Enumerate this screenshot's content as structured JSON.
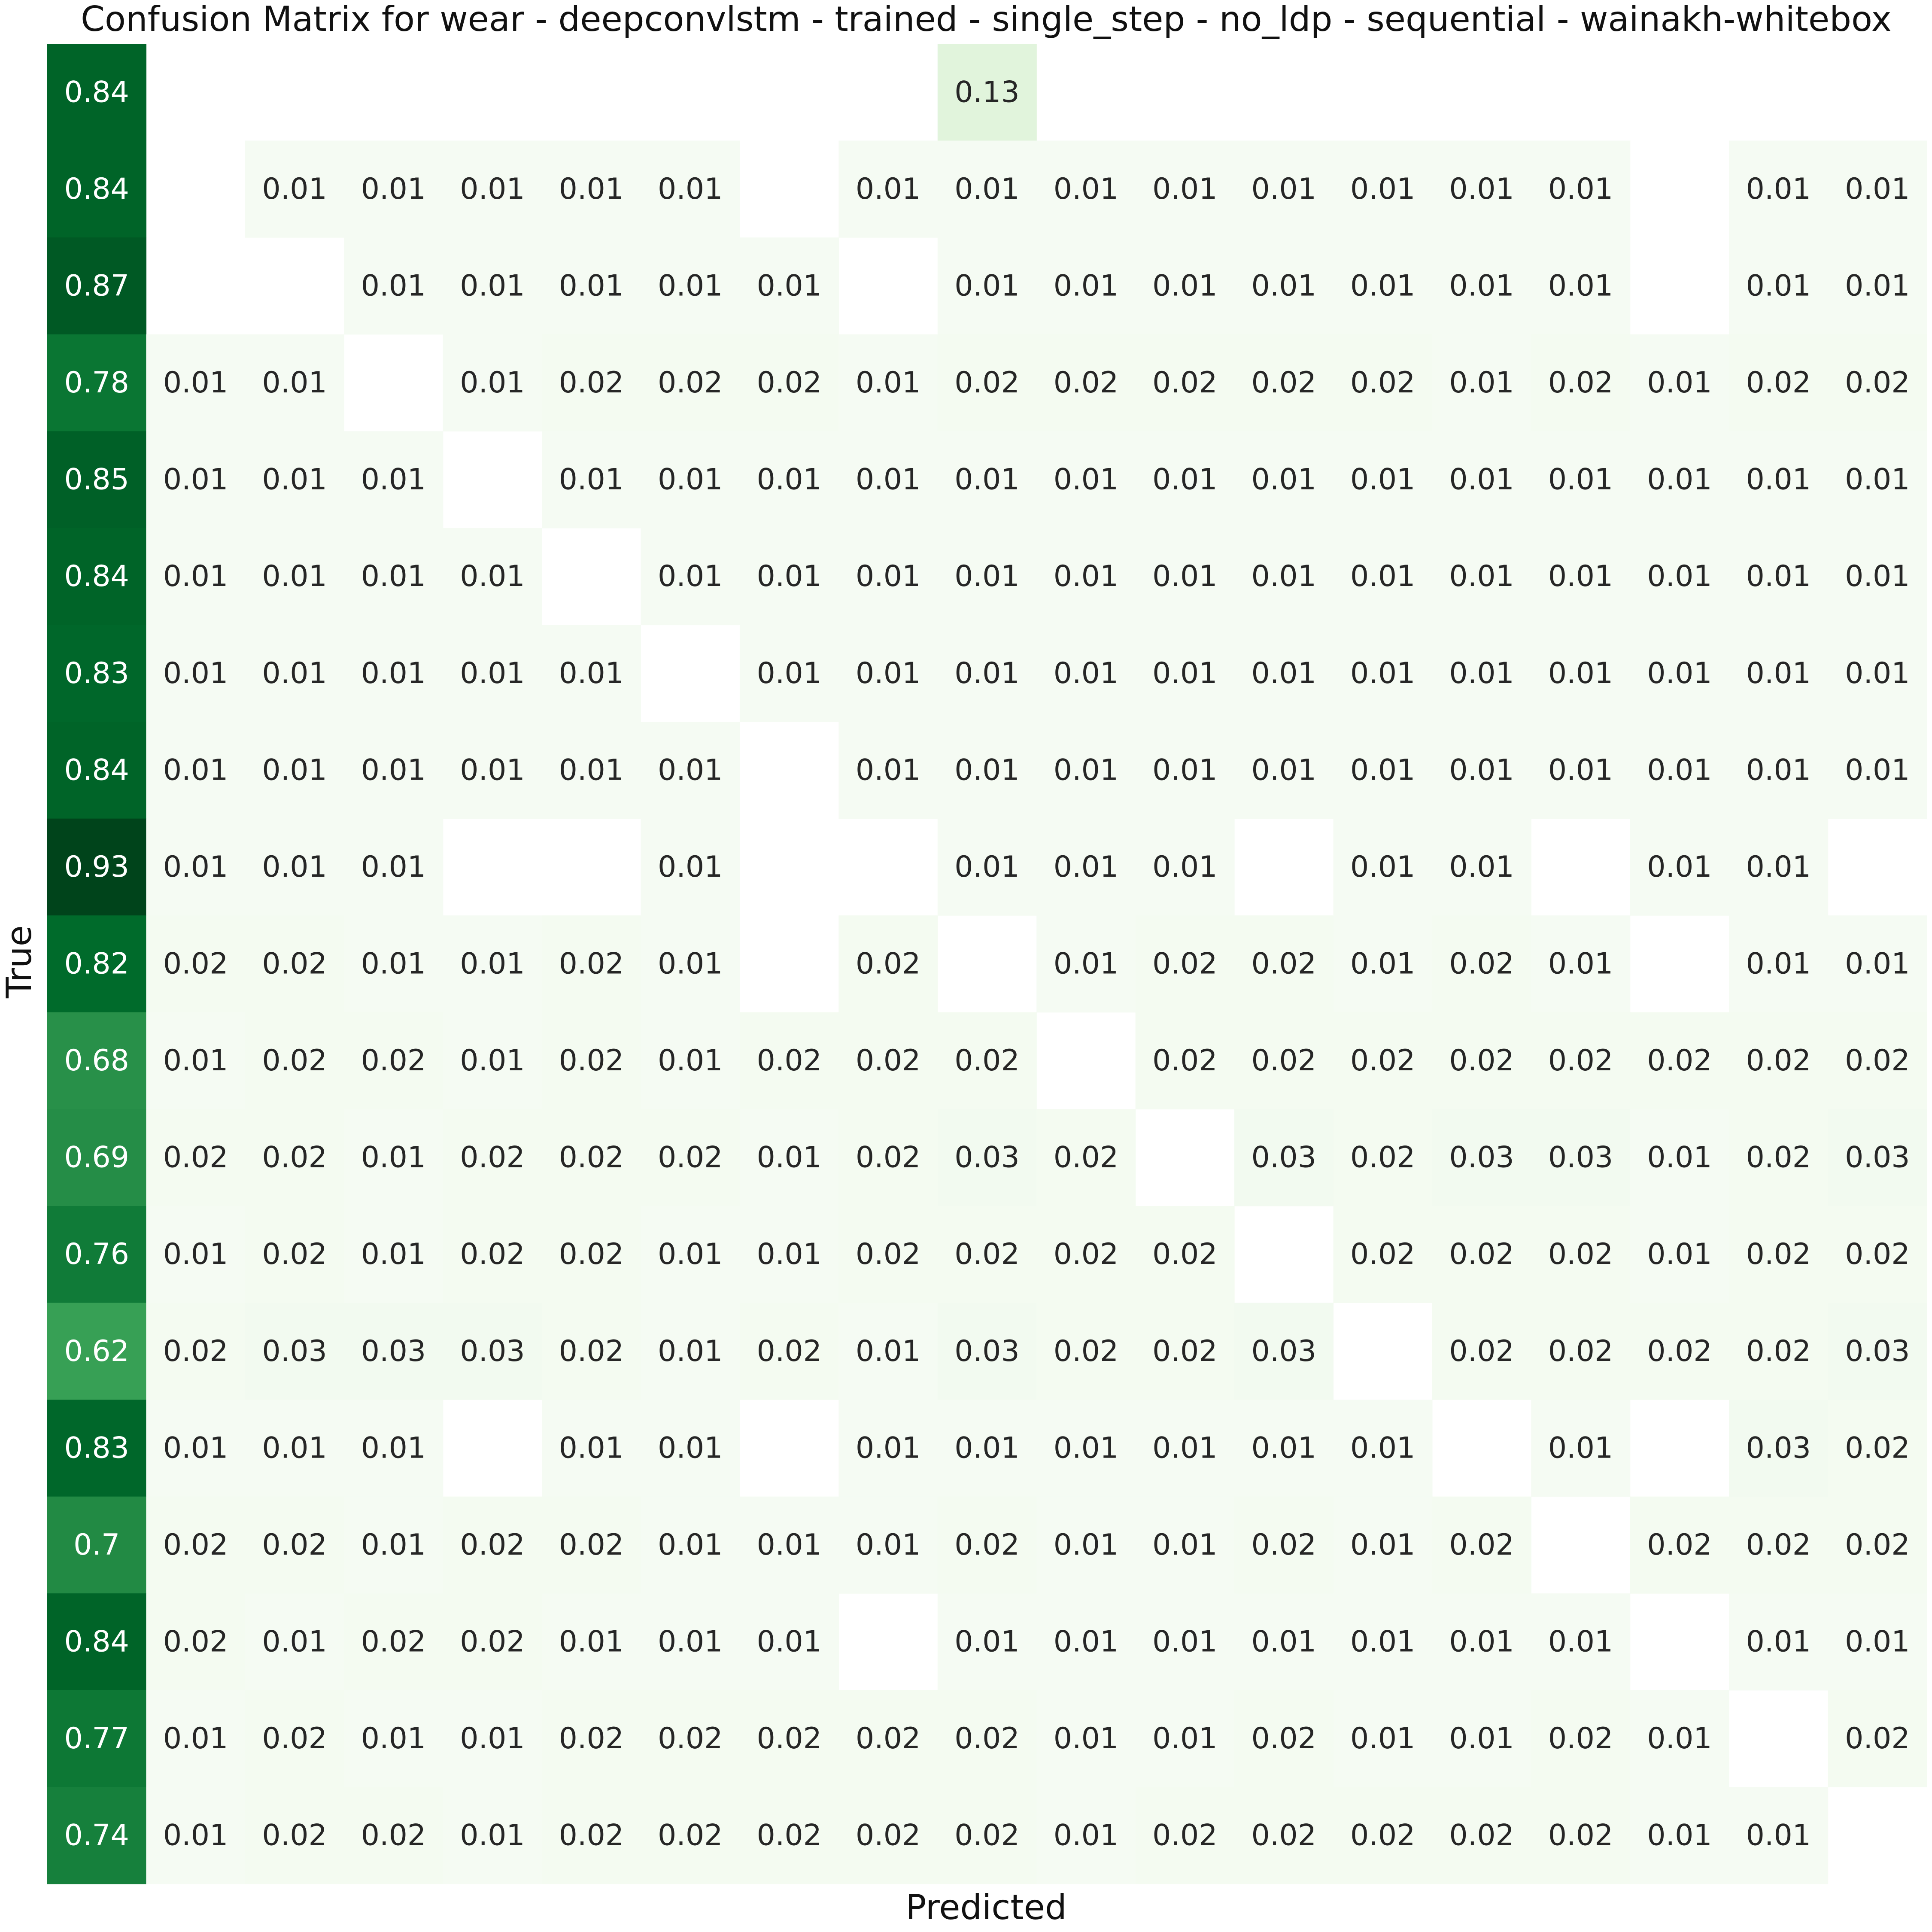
{
  "chart_data": {
    "type": "heatmap",
    "title": "Confusion Matrix for wear - deepconvlstm - trained - single_step - no_ldp - sequential - wainakh-whitebox",
    "xlabel": "Predicted",
    "ylabel": "True",
    "colormap": "Greens",
    "color_min": "#f7fcf5",
    "color_max": "#00441b",
    "vmin": 0,
    "vmax": 0.93,
    "values": [
      [
        0.84,
        null,
        null,
        null,
        null,
        null,
        null,
        null,
        null,
        0.13,
        null,
        null,
        null,
        null,
        null,
        null,
        null,
        null,
        null
      ],
      [
        0.84,
        null,
        0.01,
        0.01,
        0.01,
        0.01,
        0.01,
        null,
        0.01,
        0.01,
        0.01,
        0.01,
        0.01,
        0.01,
        0.01,
        0.01,
        null,
        0.01,
        0.01
      ],
      [
        0.87,
        null,
        null,
        0.01,
        0.01,
        0.01,
        0.01,
        0.01,
        null,
        0.01,
        0.01,
        0.01,
        0.01,
        0.01,
        0.01,
        0.01,
        null,
        0.01,
        0.01
      ],
      [
        0.78,
        0.01,
        0.01,
        null,
        0.01,
        0.02,
        0.02,
        0.02,
        0.01,
        0.02,
        0.02,
        0.02,
        0.02,
        0.02,
        0.01,
        0.02,
        0.01,
        0.02,
        0.02
      ],
      [
        0.85,
        0.01,
        0.01,
        0.01,
        null,
        0.01,
        0.01,
        0.01,
        0.01,
        0.01,
        0.01,
        0.01,
        0.01,
        0.01,
        0.01,
        0.01,
        0.01,
        0.01,
        0.01
      ],
      [
        0.84,
        0.01,
        0.01,
        0.01,
        0.01,
        null,
        0.01,
        0.01,
        0.01,
        0.01,
        0.01,
        0.01,
        0.01,
        0.01,
        0.01,
        0.01,
        0.01,
        0.01,
        0.01
      ],
      [
        0.83,
        0.01,
        0.01,
        0.01,
        0.01,
        0.01,
        null,
        0.01,
        0.01,
        0.01,
        0.01,
        0.01,
        0.01,
        0.01,
        0.01,
        0.01,
        0.01,
        0.01,
        0.01
      ],
      [
        0.84,
        0.01,
        0.01,
        0.01,
        0.01,
        0.01,
        0.01,
        null,
        0.01,
        0.01,
        0.01,
        0.01,
        0.01,
        0.01,
        0.01,
        0.01,
        0.01,
        0.01,
        0.01
      ],
      [
        0.93,
        0.01,
        0.01,
        0.01,
        null,
        null,
        0.01,
        null,
        null,
        0.01,
        0.01,
        0.01,
        null,
        0.01,
        0.01,
        null,
        0.01,
        0.01,
        null
      ],
      [
        0.82,
        0.02,
        0.02,
        0.01,
        0.01,
        0.02,
        0.01,
        null,
        0.02,
        null,
        0.01,
        0.02,
        0.02,
        0.01,
        0.02,
        0.01,
        null,
        0.01,
        0.01
      ],
      [
        0.68,
        0.01,
        0.02,
        0.02,
        0.01,
        0.02,
        0.01,
        0.02,
        0.02,
        0.02,
        null,
        0.02,
        0.02,
        0.02,
        0.02,
        0.02,
        0.02,
        0.02,
        0.02
      ],
      [
        0.69,
        0.02,
        0.02,
        0.01,
        0.02,
        0.02,
        0.02,
        0.01,
        0.02,
        0.03,
        0.02,
        null,
        0.03,
        0.02,
        0.03,
        0.03,
        0.01,
        0.02,
        0.03
      ],
      [
        0.76,
        0.01,
        0.02,
        0.01,
        0.02,
        0.02,
        0.01,
        0.01,
        0.02,
        0.02,
        0.02,
        0.02,
        null,
        0.02,
        0.02,
        0.02,
        0.01,
        0.02,
        0.02
      ],
      [
        0.62,
        0.02,
        0.03,
        0.03,
        0.03,
        0.02,
        0.01,
        0.02,
        0.01,
        0.03,
        0.02,
        0.02,
        0.03,
        null,
        0.02,
        0.02,
        0.02,
        0.02,
        0.03
      ],
      [
        0.83,
        0.01,
        0.01,
        0.01,
        null,
        0.01,
        0.01,
        null,
        0.01,
        0.01,
        0.01,
        0.01,
        0.01,
        0.01,
        null,
        0.01,
        null,
        0.03,
        0.02
      ],
      [
        0.7,
        0.02,
        0.02,
        0.01,
        0.02,
        0.02,
        0.01,
        0.01,
        0.01,
        0.02,
        0.01,
        0.01,
        0.02,
        0.01,
        0.02,
        null,
        0.02,
        0.02,
        0.02
      ],
      [
        0.84,
        0.02,
        0.01,
        0.02,
        0.02,
        0.01,
        0.01,
        0.01,
        null,
        0.01,
        0.01,
        0.01,
        0.01,
        0.01,
        0.01,
        0.01,
        null,
        0.01,
        0.01
      ],
      [
        0.77,
        0.01,
        0.02,
        0.01,
        0.01,
        0.02,
        0.02,
        0.02,
        0.02,
        0.02,
        0.01,
        0.01,
        0.02,
        0.01,
        0.01,
        0.02,
        0.01,
        null,
        0.02
      ],
      [
        0.74,
        0.01,
        0.02,
        0.02,
        0.01,
        0.02,
        0.02,
        0.02,
        0.02,
        0.02,
        0.01,
        0.02,
        0.02,
        0.02,
        0.02,
        0.02,
        0.01,
        0.01,
        null
      ]
    ]
  }
}
